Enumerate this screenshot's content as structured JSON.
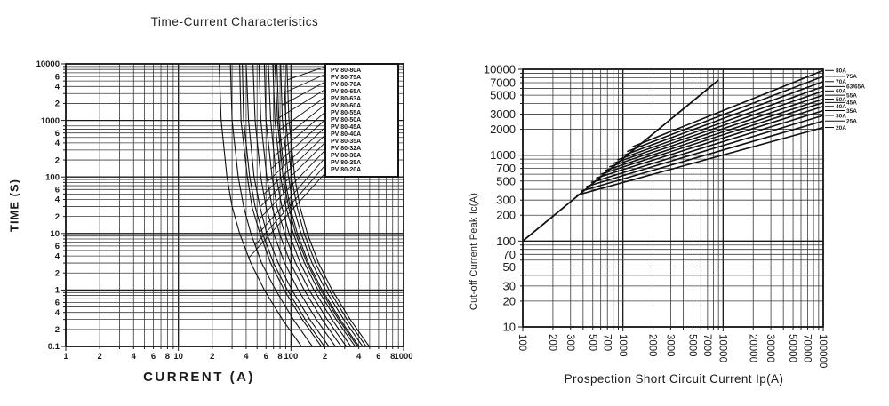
{
  "colors": {
    "ink": "#1b1b1b",
    "grid_minor": "#3a3a3a",
    "grid_major": "#1a1a1a",
    "curve": "#111111",
    "background": "#ffffff"
  },
  "chart_data": [
    {
      "type": "line",
      "title": "Time-Current Characteristics",
      "xlabel": "CURRENT (A)",
      "ylabel": "TIME (S)",
      "xscale": "log",
      "yscale": "log",
      "xlim": [
        1,
        1000
      ],
      "ylim": [
        0.1,
        10000
      ],
      "grid": "log-minor-on",
      "legend_position": "upper-right-inside",
      "x_ticks": [
        [
          1,
          "1"
        ],
        [
          2,
          "2"
        ],
        [
          4,
          "4"
        ],
        [
          6,
          "6"
        ],
        [
          8,
          "8"
        ],
        [
          10,
          "10"
        ],
        [
          20,
          "2"
        ],
        [
          40,
          "4"
        ],
        [
          60,
          "6"
        ],
        [
          80,
          "8"
        ],
        [
          100,
          "100"
        ],
        [
          200,
          "2"
        ],
        [
          400,
          "4"
        ],
        [
          600,
          "6"
        ],
        [
          800,
          "8"
        ],
        [
          1000,
          "1000"
        ]
      ],
      "y_ticks": [
        [
          10000,
          "10000"
        ],
        [
          6000,
          "6"
        ],
        [
          4000,
          "4"
        ],
        [
          2000,
          "2"
        ],
        [
          1000,
          "1000"
        ],
        [
          600,
          "6"
        ],
        [
          400,
          "4"
        ],
        [
          200,
          "2"
        ],
        [
          100,
          "100"
        ],
        [
          60,
          "6"
        ],
        [
          40,
          "4"
        ],
        [
          20,
          "2"
        ],
        [
          10,
          "10"
        ],
        [
          6,
          "6"
        ],
        [
          4,
          "4"
        ],
        [
          2,
          "2"
        ],
        [
          1,
          "1"
        ],
        [
          0.6,
          "6"
        ],
        [
          0.4,
          "4"
        ],
        [
          0.2,
          "2"
        ],
        [
          0.1,
          "0.1"
        ]
      ],
      "time_points": [
        10000,
        1000,
        100,
        30,
        10,
        3,
        1,
        0.3,
        0.1
      ],
      "series": [
        {
          "label": "PV 80-80A",
          "currents": [
            92,
            96,
            108,
            120,
            140,
            176,
            232,
            336,
            496
          ]
        },
        {
          "label": "PV 80-75A",
          "currents": [
            86,
            90,
            101,
            113,
            131,
            165,
            218,
            315,
            465
          ]
        },
        {
          "label": "PV 80-70A",
          "currents": [
            81,
            84,
            95,
            105,
            123,
            154,
            203,
            294,
            434
          ]
        },
        {
          "label": "PV 80-65A",
          "currents": [
            75,
            78,
            88,
            98,
            114,
            143,
            189,
            273,
            403
          ]
        },
        {
          "label": "PV 80-63A",
          "currents": [
            72,
            76,
            85,
            95,
            110,
            139,
            183,
            265,
            391
          ]
        },
        {
          "label": "PV 80-60A",
          "currents": [
            69,
            72,
            81,
            90,
            105,
            132,
            174,
            252,
            372
          ]
        },
        {
          "label": "PV 80-55A",
          "currents": [
            63,
            66,
            74,
            83,
            96,
            121,
            160,
            231,
            341
          ]
        },
        {
          "label": "PV 80-50A",
          "currents": [
            58,
            60,
            68,
            75,
            88,
            110,
            145,
            210,
            310
          ]
        },
        {
          "label": "PV 80-45A",
          "currents": [
            52,
            54,
            61,
            68,
            79,
            99,
            131,
            189,
            279
          ]
        },
        {
          "label": "PV 80-40A",
          "currents": [
            46,
            48,
            54,
            60,
            70,
            88,
            116,
            168,
            248
          ]
        },
        {
          "label": "PV 80-35A",
          "currents": [
            40,
            42,
            47,
            53,
            61,
            77,
            102,
            147,
            217
          ]
        },
        {
          "label": "PV 80-32A",
          "currents": [
            37,
            38,
            43,
            48,
            56,
            70,
            93,
            134,
            198
          ]
        },
        {
          "label": "PV 80-30A",
          "currents": [
            35,
            36,
            41,
            45,
            53,
            66,
            87,
            126,
            186
          ]
        },
        {
          "label": "PV 80-25A",
          "currents": [
            29,
            30,
            34,
            38,
            44,
            55,
            73,
            105,
            155
          ]
        },
        {
          "label": "PV 80-20A",
          "currents": [
            23,
            24,
            27,
            30,
            35,
            44,
            58,
            84,
            124
          ]
        }
      ]
    },
    {
      "type": "line",
      "title": "",
      "xlabel": "Prospection Short Circuit Current Ip(A)",
      "ylabel": "Cut-off Current Peak Ic(A)",
      "xscale": "log",
      "yscale": "log",
      "xlim": [
        100,
        100000
      ],
      "ylim": [
        10,
        10000
      ],
      "grid": "log-minor-on",
      "x_ticks": [
        [
          100,
          "100"
        ],
        [
          200,
          "200"
        ],
        [
          300,
          "300"
        ],
        [
          500,
          "500"
        ],
        [
          700,
          "700"
        ],
        [
          1000,
          "1000"
        ],
        [
          2000,
          "2000"
        ],
        [
          3000,
          "3000"
        ],
        [
          5000,
          "5000"
        ],
        [
          7000,
          "7000"
        ],
        [
          10000,
          "10000"
        ],
        [
          20000,
          "20000"
        ],
        [
          30000,
          "30000"
        ],
        [
          50000,
          "50000"
        ],
        [
          70000,
          "70000"
        ],
        [
          100000,
          "100000"
        ]
      ],
      "y_ticks": [
        [
          10,
          "10"
        ],
        [
          20,
          "20"
        ],
        [
          30,
          "30"
        ],
        [
          50,
          "50"
        ],
        [
          70,
          "70"
        ],
        [
          100,
          "100"
        ],
        [
          200,
          "200"
        ],
        [
          300,
          "300"
        ],
        [
          500,
          "500"
        ],
        [
          700,
          "700"
        ],
        [
          1000,
          "1000"
        ],
        [
          2000,
          "2000"
        ],
        [
          3000,
          "3000"
        ],
        [
          5000,
          "5000"
        ],
        [
          7000,
          "7000"
        ],
        [
          10000,
          "10000"
        ]
      ],
      "prospective_peak_line": [
        [
          100,
          100
        ],
        [
          9000,
          7500
        ]
      ],
      "series": [
        {
          "label": "80A",
          "points": [
            [
              1250,
              1250
            ],
            [
              100000,
              9700
            ]
          ]
        },
        {
          "label": "75A",
          "points": [
            [
              1100,
              1100
            ],
            [
              100000,
              8300
            ]
          ]
        },
        {
          "label": "70A",
          "points": [
            [
              980,
              980
            ],
            [
              100000,
              7200
            ]
          ]
        },
        {
          "label": "63/65A",
          "points": [
            [
              880,
              880
            ],
            [
              100000,
              6300
            ]
          ]
        },
        {
          "label": "60A",
          "points": [
            [
              800,
              800
            ],
            [
              100000,
              5600
            ]
          ]
        },
        {
          "label": "55A",
          "points": [
            [
              730,
              730
            ],
            [
              100000,
              5000
            ]
          ]
        },
        {
          "label": "50A",
          "points": [
            [
              660,
              660
            ],
            [
              100000,
              4500
            ]
          ]
        },
        {
          "label": "45A",
          "points": [
            [
              600,
              600
            ],
            [
              100000,
              4100
            ]
          ]
        },
        {
          "label": "40A",
          "points": [
            [
              540,
              540
            ],
            [
              100000,
              3700
            ]
          ]
        },
        {
          "label": "35A",
          "points": [
            [
              480,
              480
            ],
            [
              100000,
              3300
            ]
          ]
        },
        {
          "label": "30A",
          "points": [
            [
              430,
              430
            ],
            [
              100000,
              2900
            ]
          ]
        },
        {
          "label": "25A",
          "points": [
            [
              380,
              380
            ],
            [
              100000,
              2500
            ]
          ]
        },
        {
          "label": "20A",
          "points": [
            [
              340,
              340
            ],
            [
              100000,
              2100
            ]
          ]
        }
      ]
    }
  ]
}
